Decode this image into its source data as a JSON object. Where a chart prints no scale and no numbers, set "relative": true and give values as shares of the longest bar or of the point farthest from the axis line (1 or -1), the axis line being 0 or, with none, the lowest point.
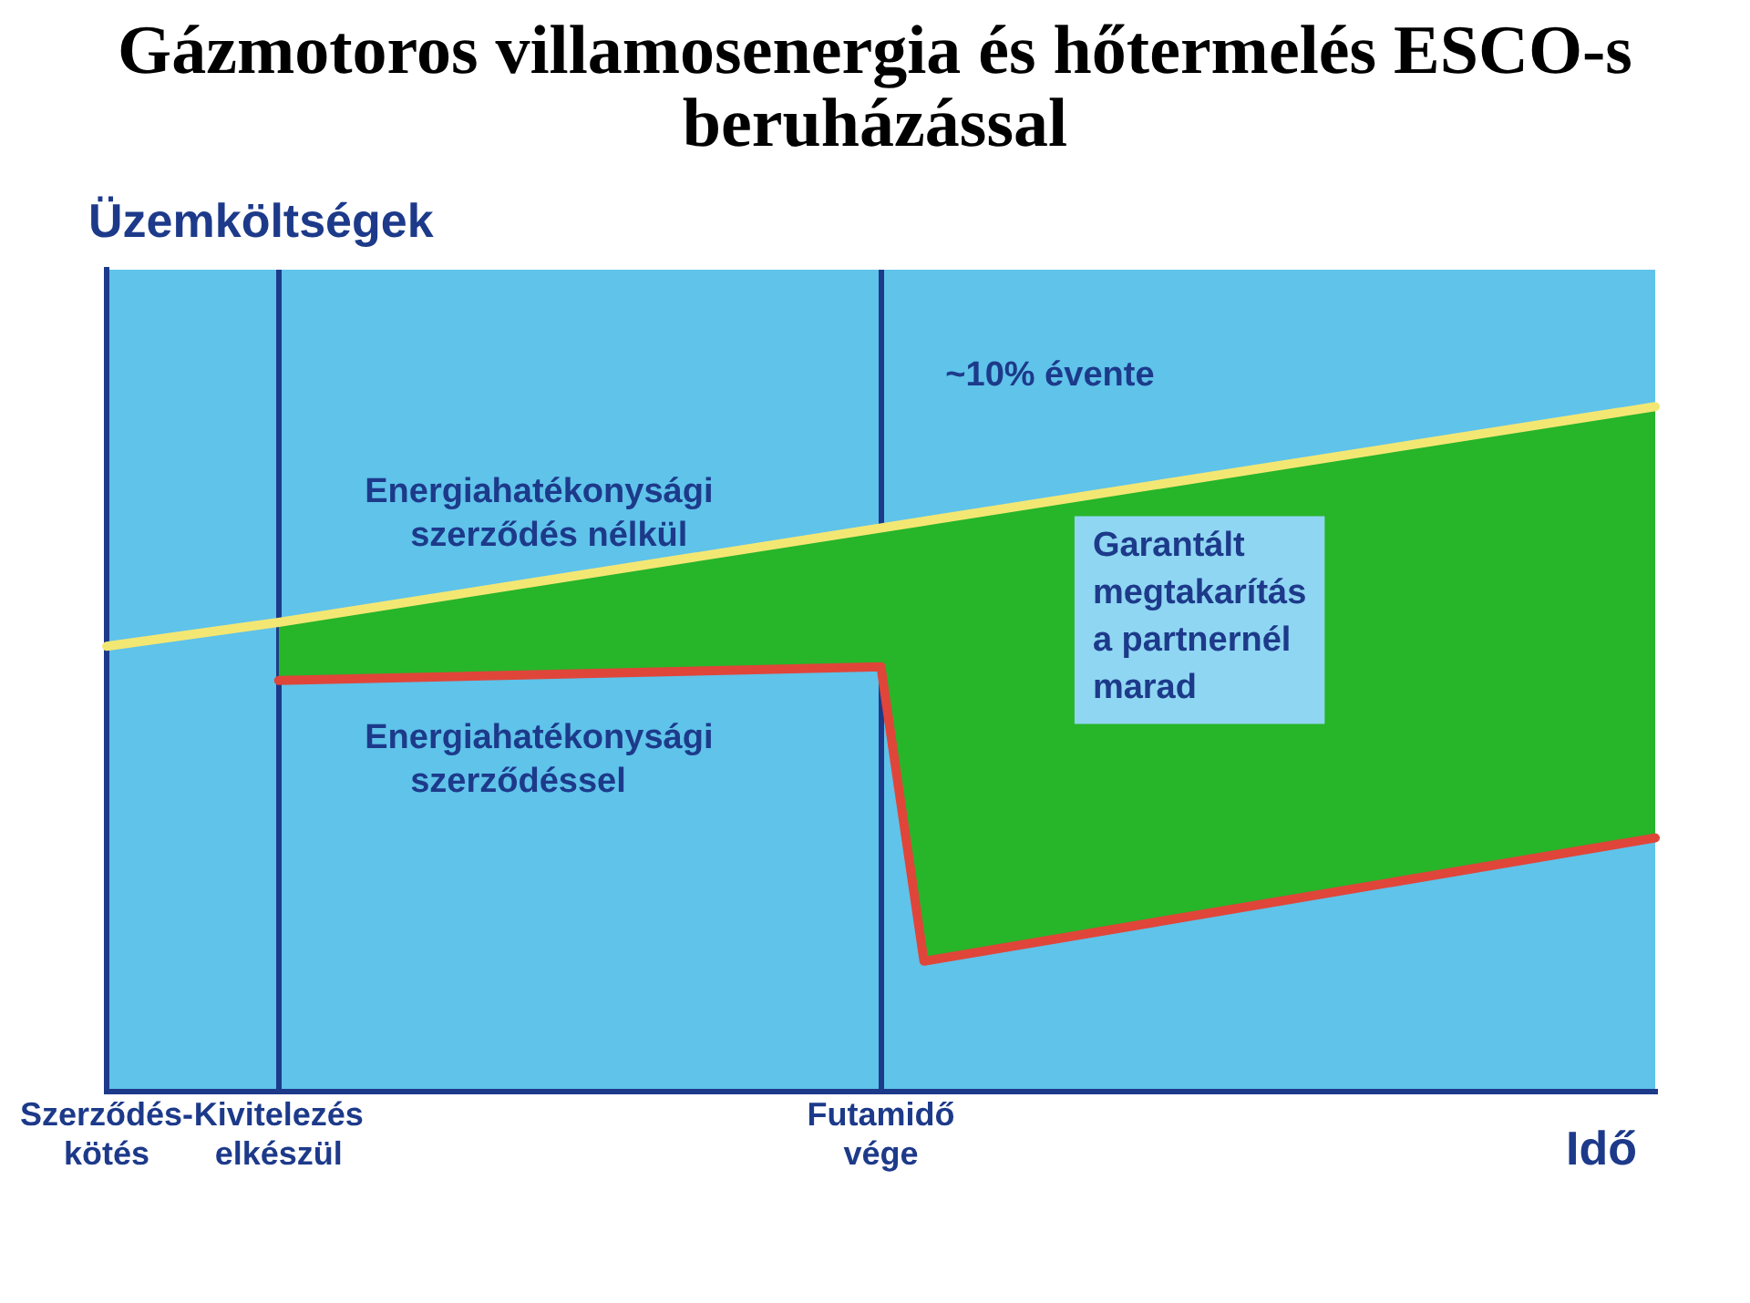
{
  "chart_data": {
    "type": "line",
    "relative": true,
    "title": "Gázmotoros villamosenergia és hőtermelés ESCO-s beruházással",
    "ylabel": "Üzemköltségek",
    "xlabel": "Idő",
    "categories": [
      "Szerződés-kötés",
      null,
      null,
      null,
      "Kivitelezés elkészül",
      null,
      null,
      null,
      null,
      null,
      null,
      null,
      null,
      null,
      null,
      null,
      null,
      null,
      "Futamidő vége",
      null,
      null,
      null,
      null,
      null,
      null,
      null,
      null,
      null,
      null,
      null,
      null,
      null,
      null,
      null,
      null,
      null,
      null
    ],
    "grid": "x",
    "legend": false,
    "marker": "none",
    "line_style": "solid",
    "series": [
      {
        "name": "Energiahatékonysági szerződés nélkül",
        "color": "#f3e774",
        "values": [
          0.65,
          null,
          null,
          null,
          0.685,
          null,
          null,
          null,
          null,
          null,
          null,
          null,
          null,
          null,
          null,
          null,
          null,
          null,
          null,
          null,
          null,
          null,
          null,
          null,
          null,
          null,
          null,
          null,
          null,
          null,
          null,
          null,
          null,
          null,
          null,
          null,
          1
        ]
      },
      {
        "name": "Energiahatékonysági szerződéssel",
        "color": "#e0453a",
        "values": [
          null,
          null,
          null,
          null,
          0.6,
          null,
          null,
          null,
          null,
          null,
          null,
          null,
          null,
          null,
          null,
          null,
          null,
          null,
          0.62,
          0.19,
          null,
          null,
          null,
          null,
          null,
          null,
          null,
          null,
          null,
          null,
          null,
          null,
          null,
          null,
          null,
          null,
          0.37
        ],
        "lower": [
          null,
          null,
          null,
          null,
          0.6,
          null,
          null,
          null,
          null,
          null,
          null,
          null,
          null,
          null,
          null,
          null,
          null,
          null,
          0.62,
          0.19,
          null,
          null,
          null,
          null,
          null,
          null,
          null,
          null,
          null,
          null,
          null,
          null,
          null,
          null,
          null,
          null,
          0.37
        ],
        "upper": [
          null,
          null,
          null,
          null,
          0.685,
          null,
          null,
          null,
          null,
          null,
          null,
          null,
          null,
          null,
          null,
          null,
          null,
          null,
          0.82,
          0.83,
          null,
          null,
          null,
          null,
          null,
          null,
          null,
          null,
          null,
          null,
          null,
          null,
          null,
          null,
          null,
          null,
          1
        ]
      }
    ],
    "annotations": [
      "~10% évente",
      "Garantált megtakarítás a partnernél marad"
    ]
  }
}
